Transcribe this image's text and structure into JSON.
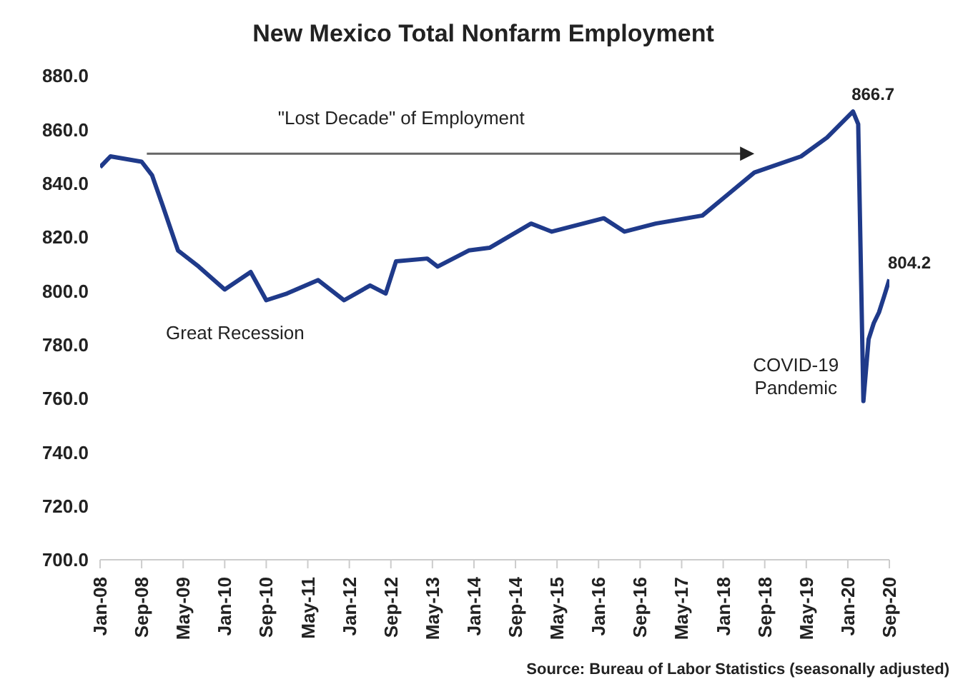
{
  "chart_data": {
    "type": "line",
    "title": "New Mexico Total Nonfarm Employment",
    "x": [
      "2008-01",
      "2008-03",
      "2008-09",
      "2008-11",
      "2009-01",
      "2009-04",
      "2009-08",
      "2010-01",
      "2010-06",
      "2010-09",
      "2011-01",
      "2011-07",
      "2011-12",
      "2012-05",
      "2012-08",
      "2012-10",
      "2013-04",
      "2013-06",
      "2013-12",
      "2014-04",
      "2014-12",
      "2015-04",
      "2016-02",
      "2016-06",
      "2016-12",
      "2017-09",
      "2018-02",
      "2018-07",
      "2019-04",
      "2019-09",
      "2020-02",
      "2020-03",
      "2020-04",
      "2020-05",
      "2020-06",
      "2020-07",
      "2020-08",
      "2020-09"
    ],
    "series": [
      {
        "color": "#1f3a8a",
        "values": [
          846,
          850,
          848,
          843,
          832,
          815,
          809,
          800.5,
          807,
          796.5,
          799,
          804,
          796.5,
          802,
          799,
          811,
          812,
          809,
          815,
          816,
          825,
          822,
          827,
          822,
          825,
          828,
          836,
          844,
          850,
          857,
          866.7,
          862,
          759,
          782,
          788,
          792,
          798,
          804.2
        ],
        "value_labels": [
          null,
          null,
          null,
          null,
          null,
          null,
          null,
          null,
          null,
          null,
          null,
          null,
          null,
          null,
          null,
          null,
          null,
          null,
          null,
          null,
          null,
          null,
          null,
          null,
          null,
          null,
          null,
          null,
          null,
          null,
          "866.7",
          null,
          null,
          null,
          null,
          null,
          null,
          "804.2"
        ]
      }
    ],
    "xlim": [
      "2008-01",
      "2020-09"
    ],
    "xticks": [
      {
        "value": "2008-01",
        "label": "Jan-08"
      },
      {
        "value": "2008-09",
        "label": "Sep-08"
      },
      {
        "value": "2009-05",
        "label": "May-09"
      },
      {
        "value": "2010-01",
        "label": "Jan-10"
      },
      {
        "value": "2010-09",
        "label": "Sep-10"
      },
      {
        "value": "2011-05",
        "label": "May-11"
      },
      {
        "value": "2012-01",
        "label": "Jan-12"
      },
      {
        "value": "2012-09",
        "label": "Sep-12"
      },
      {
        "value": "2013-05",
        "label": "May-13"
      },
      {
        "value": "2014-01",
        "label": "Jan-14"
      },
      {
        "value": "2014-09",
        "label": "Sep-14"
      },
      {
        "value": "2015-05",
        "label": "May-15"
      },
      {
        "value": "2016-01",
        "label": "Jan-16"
      },
      {
        "value": "2016-09",
        "label": "Sep-16"
      },
      {
        "value": "2017-05",
        "label": "May-17"
      },
      {
        "value": "2018-01",
        "label": "Jan-18"
      },
      {
        "value": "2018-09",
        "label": "Sep-18"
      },
      {
        "value": "2019-05",
        "label": "May-19"
      },
      {
        "value": "2020-01",
        "label": "Jan-20"
      },
      {
        "value": "2020-09",
        "label": "Sep-20"
      }
    ],
    "ylim": [
      700,
      880
    ],
    "yticks": [
      {
        "value": 700,
        "label": "700.0"
      },
      {
        "value": 720,
        "label": "720.0"
      },
      {
        "value": 740,
        "label": "740.0"
      },
      {
        "value": 760,
        "label": "760.0"
      },
      {
        "value": 780,
        "label": "780.0"
      },
      {
        "value": 800,
        "label": "800.0"
      },
      {
        "value": 820,
        "label": "820.0"
      },
      {
        "value": 840,
        "label": "840.0"
      },
      {
        "value": 860,
        "label": "860.0"
      },
      {
        "value": 880,
        "label": "880.0"
      }
    ],
    "grid": false,
    "legend": false,
    "annotations": [
      "\"Lost Decade\" of Employment",
      "Great Recession",
      "COVID-19 Pandemic",
      "Source: Bureau of Labor Statistics (seasonally adjusted)"
    ]
  }
}
